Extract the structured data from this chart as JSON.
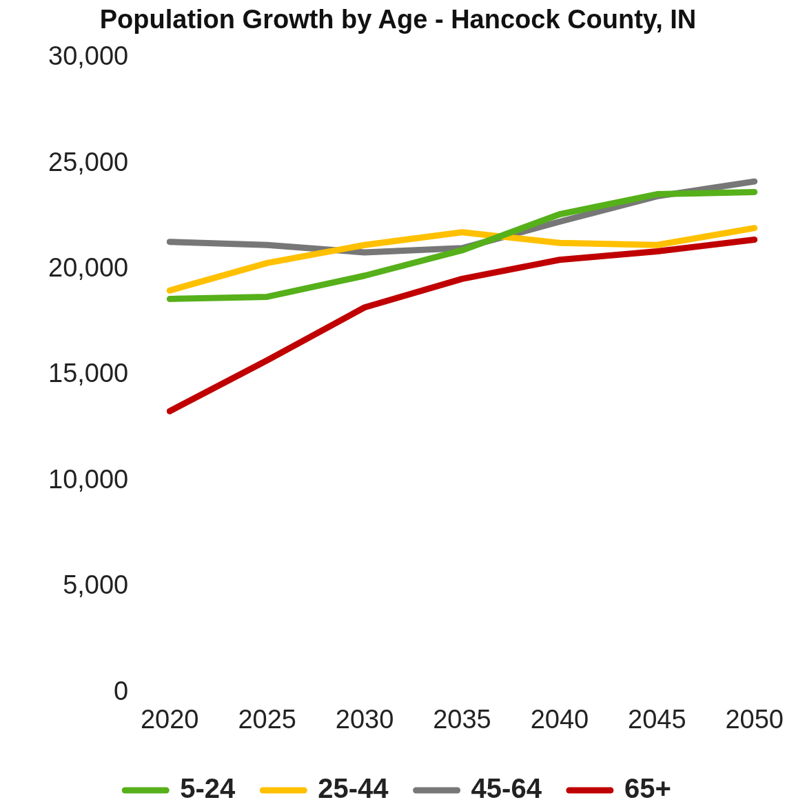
{
  "chart_data": {
    "type": "line",
    "title": "Population Growth by Age - Hancock County, IN",
    "categories": [
      "2020",
      "2025",
      "2030",
      "2035",
      "2040",
      "2045",
      "2050"
    ],
    "series": [
      {
        "name": "5-24",
        "color": "#56b01a",
        "values": [
          18600,
          18700,
          19700,
          20900,
          22600,
          23550,
          23650
        ]
      },
      {
        "name": "25-44",
        "color": "#ffc000",
        "values": [
          19000,
          20300,
          21150,
          21750,
          21250,
          21150,
          21950
        ]
      },
      {
        "name": "45-64",
        "color": "#777777",
        "values": [
          21300,
          21150,
          20800,
          21000,
          22250,
          23450,
          24150
        ]
      },
      {
        "name": "65+",
        "color": "#c00000",
        "values": [
          13300,
          15700,
          18200,
          19550,
          20450,
          20850,
          21400
        ]
      }
    ],
    "ylim": [
      0,
      30000
    ],
    "yticks": [
      0,
      {
        "value": 5000,
        "label": "5,000"
      },
      {
        "value": 10000,
        "label": "10,000"
      },
      {
        "value": 15000,
        "label": "15,000"
      },
      {
        "value": 20000,
        "label": "20,000"
      },
      {
        "value": 25000,
        "label": "25,000"
      },
      {
        "value": 30000,
        "label": "30,000"
      }
    ],
    "grid": false,
    "legend": "bottom",
    "marker": "none",
    "line_style": "solid"
  }
}
